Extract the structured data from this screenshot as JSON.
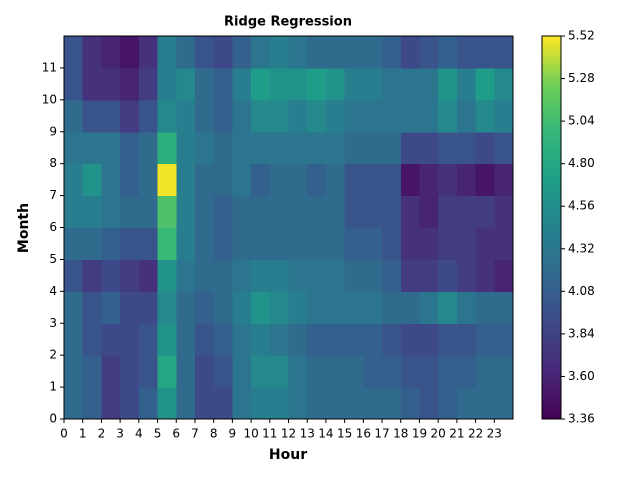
{
  "chart_data": {
    "type": "contourf",
    "title": "Ridge Regression",
    "x_label": "Hour",
    "y_label": "Month",
    "x": [
      0,
      1,
      2,
      3,
      4,
      5,
      6,
      7,
      8,
      9,
      10,
      11,
      12,
      13,
      14,
      15,
      16,
      17,
      18,
      19,
      20,
      21,
      22,
      23
    ],
    "y": [
      0,
      1,
      2,
      3,
      4,
      5,
      6,
      7,
      8,
      9,
      10,
      11
    ],
    "xlim": [
      0,
      24
    ],
    "ylim": [
      0,
      12
    ],
    "xticks": [
      0,
      1,
      2,
      3,
      4,
      5,
      6,
      7,
      8,
      9,
      10,
      11,
      12,
      13,
      14,
      15,
      16,
      17,
      18,
      19,
      20,
      21,
      22,
      23
    ],
    "yticks": [
      0,
      1,
      2,
      3,
      4,
      5,
      6,
      7,
      8,
      9,
      10,
      11
    ],
    "colormap": "viridis",
    "clim": [
      3.36,
      5.52
    ],
    "cticks": [
      3.36,
      {
        "value": 3.6,
        "label": "3.60"
      },
      3.84,
      4.08,
      4.32,
      4.56,
      {
        "value": 4.8,
        "label": "4.80"
      },
      5.04,
      5.28,
      5.52
    ],
    "z": [
      [
        4.2,
        4.1,
        3.8,
        3.9,
        4.1,
        4.6,
        4.2,
        3.9,
        3.9,
        4.3,
        4.4,
        4.4,
        4.3,
        4.2,
        4.2,
        4.2,
        4.2,
        4.2,
        4.1,
        4.0,
        4.1,
        4.2,
        4.2,
        4.2
      ],
      [
        4.2,
        4.1,
        3.8,
        3.9,
        4.0,
        4.8,
        4.2,
        3.9,
        4.0,
        4.3,
        4.5,
        4.5,
        4.3,
        4.2,
        4.2,
        4.2,
        4.1,
        4.1,
        4.0,
        4.0,
        4.1,
        4.1,
        4.2,
        4.2
      ],
      [
        4.2,
        4.0,
        3.9,
        3.9,
        4.0,
        4.6,
        4.2,
        4.0,
        4.1,
        4.3,
        4.4,
        4.3,
        4.2,
        4.1,
        4.1,
        4.1,
        4.1,
        4.0,
        3.9,
        3.9,
        4.0,
        4.0,
        4.1,
        4.1
      ],
      [
        4.2,
        4.0,
        4.1,
        3.9,
        3.9,
        4.5,
        4.2,
        4.1,
        4.2,
        4.4,
        4.6,
        4.5,
        4.4,
        4.3,
        4.3,
        4.3,
        4.3,
        4.2,
        4.2,
        4.3,
        4.5,
        4.3,
        4.2,
        4.2
      ],
      [
        4.0,
        3.8,
        3.9,
        3.8,
        3.7,
        4.6,
        4.3,
        4.2,
        4.2,
        4.3,
        4.4,
        4.4,
        4.3,
        4.3,
        4.3,
        4.2,
        4.2,
        4.1,
        3.8,
        3.8,
        3.9,
        3.8,
        3.7,
        3.6
      ],
      [
        4.2,
        4.2,
        4.1,
        4.0,
        4.0,
        5.0,
        4.4,
        4.2,
        4.1,
        4.2,
        4.2,
        4.2,
        4.2,
        4.2,
        4.2,
        4.1,
        4.1,
        4.0,
        3.7,
        3.7,
        3.8,
        3.8,
        3.7,
        3.7
      ],
      [
        4.4,
        4.4,
        4.3,
        4.2,
        4.2,
        5.1,
        4.4,
        4.2,
        4.1,
        4.2,
        4.2,
        4.2,
        4.2,
        4.2,
        4.2,
        4.0,
        4.0,
        4.0,
        3.7,
        3.6,
        3.8,
        3.8,
        3.8,
        3.7
      ],
      [
        4.4,
        4.6,
        4.3,
        4.1,
        4.2,
        5.5,
        4.4,
        4.2,
        4.2,
        4.3,
        4.1,
        4.2,
        4.2,
        4.1,
        4.2,
        4.0,
        4.0,
        4.0,
        3.5,
        3.6,
        3.7,
        3.6,
        3.5,
        3.6
      ],
      [
        4.3,
        4.3,
        4.3,
        4.1,
        4.2,
        4.9,
        4.4,
        4.3,
        4.2,
        4.3,
        4.3,
        4.3,
        4.3,
        4.3,
        4.3,
        4.2,
        4.2,
        4.2,
        3.9,
        3.9,
        4.0,
        4.0,
        3.9,
        4.0
      ],
      [
        4.2,
        4.0,
        4.0,
        3.8,
        4.0,
        4.5,
        4.4,
        4.2,
        4.1,
        4.3,
        4.5,
        4.5,
        4.4,
        4.5,
        4.4,
        4.3,
        4.3,
        4.3,
        4.3,
        4.3,
        4.5,
        4.3,
        4.5,
        4.4
      ],
      [
        4.0,
        3.7,
        3.7,
        3.6,
        3.8,
        4.4,
        4.5,
        4.2,
        4.1,
        4.4,
        4.7,
        4.6,
        4.6,
        4.7,
        4.6,
        4.4,
        4.4,
        4.3,
        4.3,
        4.3,
        4.6,
        4.4,
        4.7,
        4.5
      ],
      [
        4.0,
        3.7,
        3.6,
        3.5,
        3.7,
        4.4,
        4.2,
        4.0,
        3.9,
        4.1,
        4.3,
        4.4,
        4.3,
        4.2,
        4.2,
        4.2,
        4.2,
        4.1,
        3.9,
        4.0,
        4.1,
        4.0,
        4.0,
        4.0
      ]
    ]
  }
}
